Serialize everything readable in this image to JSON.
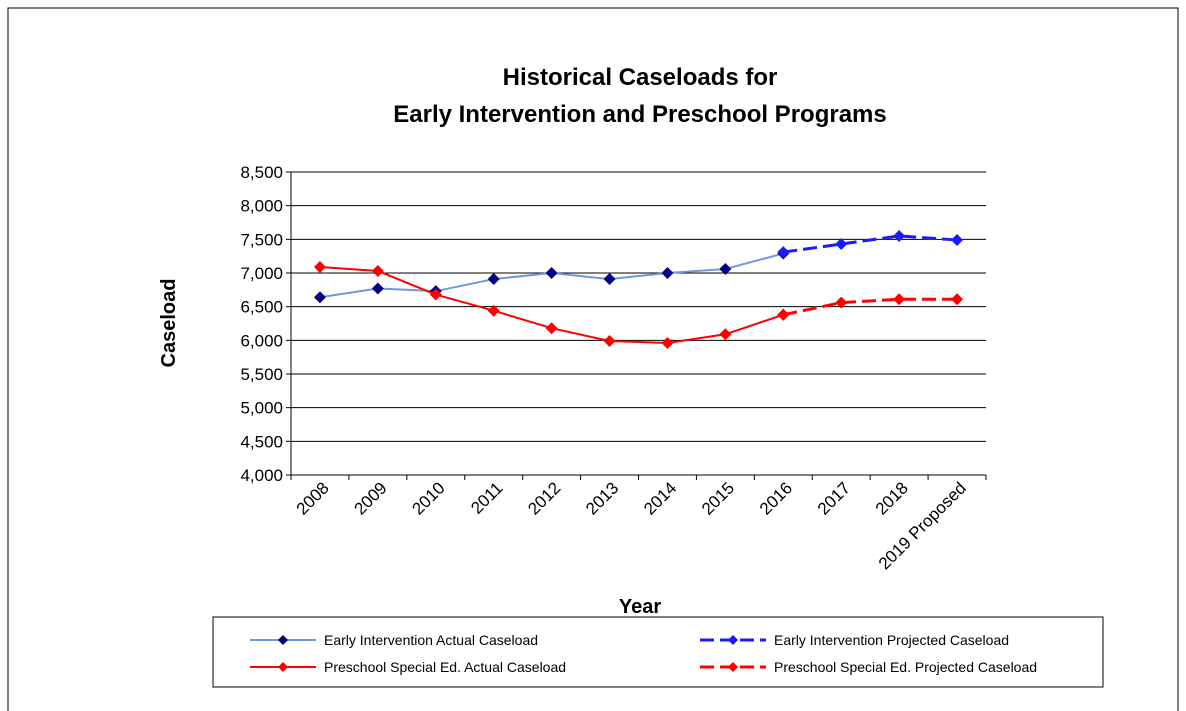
{
  "chart_data": {
    "type": "line",
    "title": [
      "Historical Caseloads for",
      "Early Intervention and Preschool Programs"
    ],
    "x_label": "Year",
    "y_label": "Caseload",
    "categories": [
      "2008",
      "2009",
      "2010",
      "2011",
      "2012",
      "2013",
      "2014",
      "2015",
      "2016",
      "2017",
      "2018",
      "2019 Proposed"
    ],
    "series": [
      {
        "name": "Early Intervention Actual Caseload",
        "color": "#6f9ad8",
        "marker_color": "#000080",
        "style": "solid",
        "values": [
          6640,
          6770,
          6730,
          6910,
          7000,
          6910,
          7000,
          7060,
          7290,
          null,
          null,
          null
        ]
      },
      {
        "name": "Early Intervention Projected Caseload",
        "color": "#1a1aff",
        "marker_color": "#1a1aff",
        "style": "dashed",
        "values": [
          null,
          null,
          null,
          null,
          null,
          null,
          null,
          null,
          7310,
          7430,
          7550,
          7490
        ]
      },
      {
        "name": "Preschool Special Ed. Actual Caseload",
        "color": "#ff0000",
        "marker_color": "#ff0000",
        "style": "solid",
        "values": [
          7090,
          7030,
          6680,
          6440,
          6180,
          5990,
          5960,
          6090,
          6380,
          null,
          null,
          null
        ]
      },
      {
        "name": "Preschool Special Ed. Projected Caseload",
        "color": "#ff0000",
        "marker_color": "#ff0000",
        "style": "dashed",
        "values": [
          null,
          null,
          null,
          null,
          null,
          null,
          null,
          null,
          6380,
          6560,
          6610,
          6610
        ]
      }
    ],
    "ylim": [
      4000,
      8500
    ],
    "yticks": [
      {
        "value": 4000,
        "label": "4,000"
      },
      {
        "value": 4500,
        "label": "4,500"
      },
      {
        "value": 5000,
        "label": "5,000"
      },
      {
        "value": 5500,
        "label": "5,500"
      },
      {
        "value": 6000,
        "label": "6,000"
      },
      {
        "value": 6500,
        "label": "6,500"
      },
      {
        "value": 7000,
        "label": "7,000"
      },
      {
        "value": 7500,
        "label": "7,500"
      },
      {
        "value": 8000,
        "label": "8,000"
      },
      {
        "value": 8500,
        "label": "8,500"
      }
    ],
    "grid": true,
    "legend": "bottom"
  }
}
